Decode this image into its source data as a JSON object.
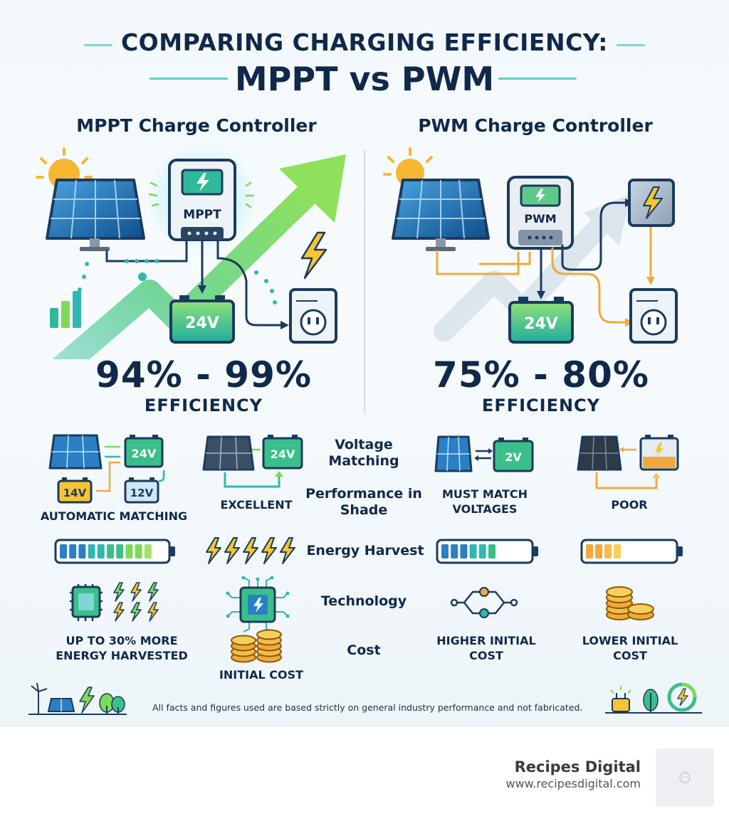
{
  "header": {
    "title_line1": "COMPARING CHARGING EFFICIENCY:",
    "title_line2": "MPPT vs PWM"
  },
  "mppt": {
    "heading": "MPPT Charge Controller",
    "device_label": "MPPT",
    "battery_label": "24V",
    "efficiency_range": "94% - 99%",
    "efficiency_label": "EFFICIENCY",
    "voltage_caption": "AUTOMATIC MATCHING",
    "voltage_battery": "24V",
    "voltage_input_a": "14V",
    "voltage_input_b": "12V",
    "shade_caption": "EXCELLENT",
    "shade_battery": "24V",
    "harvest_level": 0.9,
    "technology_caption": "UP TO 30% MORE ENERGY HARVESTED",
    "cost_caption": "INITIAL COST"
  },
  "pwm": {
    "heading": "PWM Charge Controller",
    "device_label": "PWM",
    "battery_label": "24V",
    "efficiency_range": "75% - 80%",
    "efficiency_label": "EFFICIENCY",
    "voltage_caption": "MUST MATCH VOLTAGES",
    "voltage_battery": "2V",
    "shade_caption": "POOR",
    "harvest_level": 0.35,
    "technology_caption": "HIGHER INITIAL COST",
    "cost_caption": "LOWER INITIAL COST"
  },
  "rows": {
    "voltage": "Voltage Matching",
    "shade": "Performance in Shade",
    "harvest": "Energy Harvest",
    "technology": "Technology",
    "cost": "Cost"
  },
  "footer": {
    "note": "All facts and figures used are based strictly on general industry performance and not fabricated."
  },
  "brand": {
    "name": "Recipes Digital",
    "url": "www.recipesdigital.com"
  },
  "colors": {
    "navy": "#10294a",
    "teal": "#2fb8b3",
    "green": "#7ed957",
    "orange": "#f2a93b",
    "panel_blue": "#1f6fb2"
  }
}
